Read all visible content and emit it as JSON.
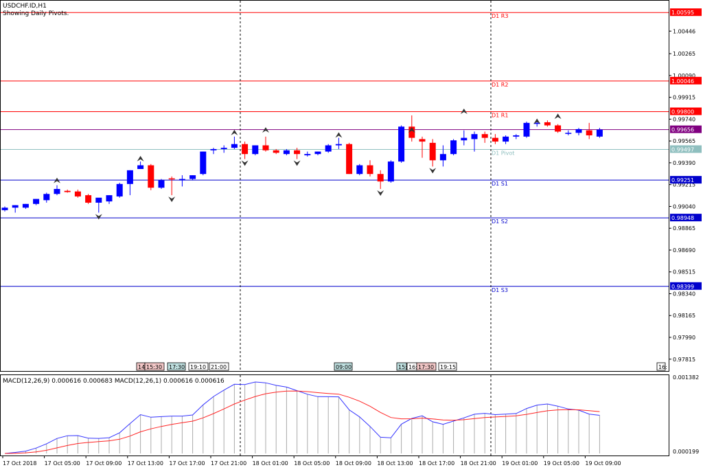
{
  "header": {
    "symbol": "USDCHF.ID,H1",
    "subtitle": "Showing Daily Pivots."
  },
  "colors": {
    "bull": "#0000ff",
    "bear": "#ff0000",
    "resistance": "#ff0000",
    "support": "#0000cc",
    "pivot": "#8fbfbf",
    "current": "#800080",
    "macd_main": "#3333ff",
    "macd_signal": "#ff2222",
    "histogram": "#aaaaaa"
  },
  "pivots": [
    {
      "label": "D1 R3",
      "price": "1.00595",
      "kind": "resistance"
    },
    {
      "label": "D1 R2",
      "price": "1.00046",
      "kind": "resistance"
    },
    {
      "label": "D1 R1",
      "price": "0.99800",
      "kind": "resistance"
    },
    {
      "label": "D1 Pivot",
      "price": "0.99497",
      "kind": "pivot"
    },
    {
      "label": "D1 S1",
      "price": "0.99251",
      "kind": "support"
    },
    {
      "label": "D1 S2",
      "price": "0.98948",
      "kind": "support"
    },
    {
      "label": "D1 S3",
      "price": "0.98399",
      "kind": "support"
    }
  ],
  "current_price": "0.99656",
  "price_axis": [
    "1.00446",
    "1.00265",
    "1.00090",
    "0.99915",
    "0.99740",
    "0.99565",
    "0.99390",
    "0.99215",
    "0.99040",
    "0.98865",
    "0.98690",
    "0.98515",
    "0.98340",
    "0.98165",
    "0.97990",
    "0.97815"
  ],
  "event_labels": [
    {
      "text": "14:",
      "type": "red"
    },
    {
      "text": "15:30",
      "type": "red"
    },
    {
      "text": "17:30",
      "type": "teal"
    },
    {
      "text": "19:10",
      "type": "plain"
    },
    {
      "text": "21:00",
      "type": "plain"
    },
    {
      "text": "09:00",
      "type": "teal"
    },
    {
      "text": "15:",
      "type": "teal"
    },
    {
      "text": "16:",
      "type": "plain"
    },
    {
      "text": "17:30",
      "type": "red"
    },
    {
      "text": "19:15",
      "type": "plain"
    },
    {
      "text": "16:",
      "type": "plain"
    }
  ],
  "macd": {
    "label": "MACD(12,26,9) 0.000616 0.000683 MACD(12,26,1) 0.000616 0.000616",
    "axis_top": "0.001382",
    "axis_bottom": "0.000199"
  },
  "time_axis": [
    "17 Oct 2018",
    "17 Oct 05:00",
    "17 Oct 09:00",
    "17 Oct 13:00",
    "17 Oct 17:00",
    "17 Oct 21:00",
    "18 Oct 01:00",
    "18 Oct 05:00",
    "18 Oct 09:00",
    "18 Oct 13:00",
    "18 Oct 17:00",
    "18 Oct 21:00",
    "19 Oct 01:00",
    "19 Oct 05:00",
    "19 Oct 09:00"
  ],
  "chart_data": {
    "type": "candlestick",
    "title": "USDCHF.ID,H1",
    "ylim": [
      0.9772,
      1.0069
    ],
    "candles": [
      {
        "o": 0.9901,
        "h": 0.9904,
        "l": 0.99,
        "c": 0.9903
      },
      {
        "o": 0.9903,
        "h": 0.9905,
        "l": 0.9899,
        "c": 0.9905
      },
      {
        "o": 0.9903,
        "h": 0.9906,
        "l": 0.9902,
        "c": 0.9906
      },
      {
        "o": 0.9906,
        "h": 0.991,
        "l": 0.9905,
        "c": 0.991
      },
      {
        "o": 0.9909,
        "h": 0.9915,
        "l": 0.9907,
        "c": 0.9914
      },
      {
        "o": 0.9914,
        "h": 0.9921,
        "l": 0.9913,
        "c": 0.9918
      },
      {
        "o": 0.99165,
        "h": 0.99175,
        "l": 0.9915,
        "c": 0.99155
      },
      {
        "o": 0.9916,
        "h": 0.99175,
        "l": 0.9911,
        "c": 0.9912
      },
      {
        "o": 0.9913,
        "h": 0.9914,
        "l": 0.9906,
        "c": 0.9907
      },
      {
        "o": 0.9907,
        "h": 0.99105,
        "l": 0.9899,
        "c": 0.9911
      },
      {
        "o": 0.9908,
        "h": 0.9913,
        "l": 0.9906,
        "c": 0.9913
      },
      {
        "o": 0.9912,
        "h": 0.9923,
        "l": 0.9911,
        "c": 0.9922
      },
      {
        "o": 0.9922,
        "h": 0.9933,
        "l": 0.9913,
        "c": 0.9933
      },
      {
        "o": 0.9934,
        "h": 0.994,
        "l": 0.9934,
        "c": 0.9937
      },
      {
        "o": 0.9937,
        "h": 0.9938,
        "l": 0.9917,
        "c": 0.9919
      },
      {
        "o": 0.9919,
        "h": 0.9926,
        "l": 0.9918,
        "c": 0.9925
      },
      {
        "o": 0.99265,
        "h": 0.9928,
        "l": 0.9913,
        "c": 0.9926
      },
      {
        "o": 0.9925,
        "h": 0.9929,
        "l": 0.992,
        "c": 0.9926
      },
      {
        "o": 0.9926,
        "h": 0.9929,
        "l": 0.9925,
        "c": 0.9929
      },
      {
        "o": 0.993,
        "h": 0.9948,
        "l": 0.9929,
        "c": 0.9948
      },
      {
        "o": 0.9949,
        "h": 0.9951,
        "l": 0.9946,
        "c": 0.995
      },
      {
        "o": 0.995,
        "h": 0.9953,
        "l": 0.9947,
        "c": 0.9951
      },
      {
        "o": 0.9951,
        "h": 0.996,
        "l": 0.995,
        "c": 0.9954
      },
      {
        "o": 0.9954,
        "h": 0.9956,
        "l": 0.9942,
        "c": 0.9946
      },
      {
        "o": 0.9946,
        "h": 0.9953,
        "l": 0.9945,
        "c": 0.9953
      },
      {
        "o": 0.9953,
        "h": 0.996,
        "l": 0.9948,
        "c": 0.9949
      },
      {
        "o": 0.9949,
        "h": 0.995,
        "l": 0.9946,
        "c": 0.9947
      },
      {
        "o": 0.9946,
        "h": 0.995,
        "l": 0.9945,
        "c": 0.9949
      },
      {
        "o": 0.9949,
        "h": 0.9951,
        "l": 0.9942,
        "c": 0.9946
      },
      {
        "o": 0.9945,
        "h": 0.9948,
        "l": 0.9944,
        "c": 0.9946
      },
      {
        "o": 0.9946,
        "h": 0.9948,
        "l": 0.9945,
        "c": 0.9948
      },
      {
        "o": 0.9948,
        "h": 0.9954,
        "l": 0.9947,
        "c": 0.9953
      },
      {
        "o": 0.9953,
        "h": 0.9959,
        "l": 0.995,
        "c": 0.9954
      },
      {
        "o": 0.9954,
        "h": 0.9955,
        "l": 0.993,
        "c": 0.993
      },
      {
        "o": 0.993,
        "h": 0.9938,
        "l": 0.9929,
        "c": 0.9937
      },
      {
        "o": 0.9937,
        "h": 0.9941,
        "l": 0.9928,
        "c": 0.993
      },
      {
        "o": 0.993,
        "h": 0.9933,
        "l": 0.9918,
        "c": 0.9924
      },
      {
        "o": 0.9924,
        "h": 0.9941,
        "l": 0.9923,
        "c": 0.994
      },
      {
        "o": 0.994,
        "h": 0.9969,
        "l": 0.9939,
        "c": 0.9968
      },
      {
        "o": 0.9968,
        "h": 0.9977,
        "l": 0.9956,
        "c": 0.9959
      },
      {
        "o": 0.9958,
        "h": 0.996,
        "l": 0.9943,
        "c": 0.9956
      },
      {
        "o": 0.9955,
        "h": 0.9958,
        "l": 0.9936,
        "c": 0.9941
      },
      {
        "o": 0.9941,
        "h": 0.9953,
        "l": 0.9936,
        "c": 0.9946
      },
      {
        "o": 0.9946,
        "h": 0.9958,
        "l": 0.9945,
        "c": 0.9957
      },
      {
        "o": 0.9957,
        "h": 0.9965,
        "l": 0.9953,
        "c": 0.9959
      },
      {
        "o": 0.9958,
        "h": 0.9964,
        "l": 0.9948,
        "c": 0.9962
      },
      {
        "o": 0.9962,
        "h": 0.9964,
        "l": 0.9955,
        "c": 0.9959
      },
      {
        "o": 0.9959,
        "h": 0.9962,
        "l": 0.9954,
        "c": 0.9956
      },
      {
        "o": 0.9956,
        "h": 0.9961,
        "l": 0.9954,
        "c": 0.996
      },
      {
        "o": 0.996,
        "h": 0.9962,
        "l": 0.9958,
        "c": 0.9961
      },
      {
        "o": 0.996,
        "h": 0.9972,
        "l": 0.9959,
        "c": 0.9971
      },
      {
        "o": 0.9971,
        "h": 0.9973,
        "l": 0.9968,
        "c": 0.9971
      },
      {
        "o": 0.99715,
        "h": 0.9973,
        "l": 0.9968,
        "c": 0.9969
      },
      {
        "o": 0.9969,
        "h": 0.997,
        "l": 0.9963,
        "c": 0.9964
      },
      {
        "o": 0.9963,
        "h": 0.9965,
        "l": 0.9961,
        "c": 0.9963
      },
      {
        "o": 0.9963,
        "h": 0.9967,
        "l": 0.9961,
        "c": 0.9966
      },
      {
        "o": 0.9965,
        "h": 0.9971,
        "l": 0.9958,
        "c": 0.9961
      },
      {
        "o": 0.996,
        "h": 0.9967,
        "l": 0.9959,
        "c": 0.99656
      }
    ],
    "fractals_up": [
      0.99215,
      0.9939,
      0.996,
      0.9962,
      0.9958,
      0.9962,
      0.9977,
      0.9969,
      0.9973
    ],
    "fractals_down": [
      0.9899,
      0.9913,
      0.9942,
      0.9942,
      0.9918,
      0.9936
    ]
  }
}
